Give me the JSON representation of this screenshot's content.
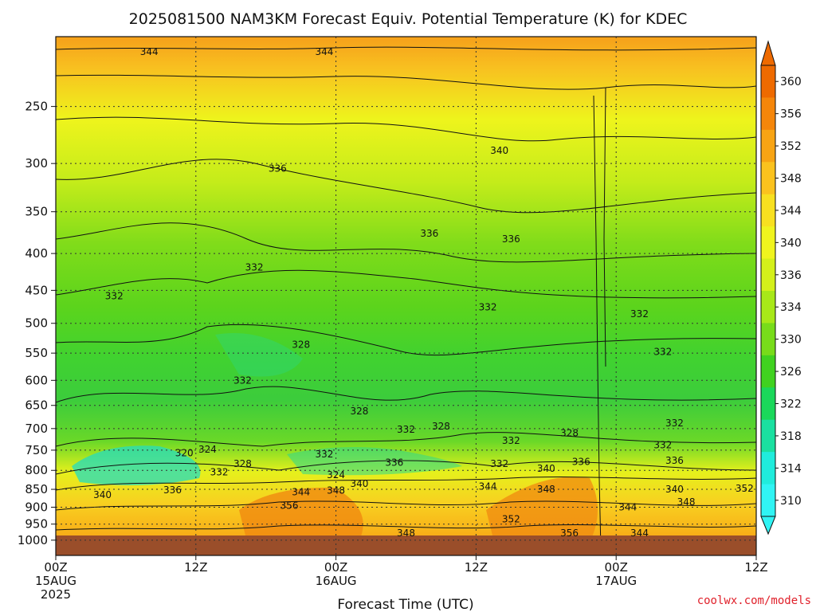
{
  "chart_data": {
    "type": "heatmap",
    "title": "2025081500 NAM3KM Forecast Equiv. Potential Temperature (K) for KDEC",
    "xlabel": "Forecast Time (UTC)",
    "ylabel": "",
    "y_scale": "log-pressure",
    "y_reversed": true,
    "ylim": [
      1050,
      200
    ],
    "y_ticks": [
      250,
      300,
      350,
      400,
      450,
      500,
      550,
      600,
      650,
      700,
      750,
      800,
      850,
      900,
      950,
      1000
    ],
    "x_ticks": [
      {
        "label": "00Z",
        "date": "15AUG",
        "year": "2025",
        "hour": 0
      },
      {
        "label": "12Z",
        "date": "",
        "year": "",
        "hour": 12
      },
      {
        "label": "00Z",
        "date": "16AUG",
        "year": "",
        "hour": 24
      },
      {
        "label": "12Z",
        "date": "",
        "year": "",
        "hour": 36
      },
      {
        "label": "00Z",
        "date": "17AUG",
        "year": "",
        "hour": 48
      },
      {
        "label": "12Z",
        "date": "",
        "year": "",
        "hour": 60
      }
    ],
    "grid": true,
    "colorbar": {
      "unit": "K",
      "labels": [
        360,
        356,
        352,
        348,
        344,
        340,
        336,
        334,
        330,
        326,
        322,
        318,
        314,
        310
      ],
      "colors": [
        "#ee6a00",
        "#f5860a",
        "#f8a414",
        "#fbc21e",
        "#f8e020",
        "#f0f41e",
        "#d4f01a",
        "#a8e818",
        "#78dc1a",
        "#40d220",
        "#1ad85a",
        "#1ae0a0",
        "#20ecdc",
        "#30f4f4"
      ]
    },
    "contour_labels": [
      {
        "text": "344",
        "hour": 8,
        "p": 210
      },
      {
        "text": "344",
        "hour": 23,
        "p": 210
      },
      {
        "text": "340",
        "hour": 38,
        "p": 288
      },
      {
        "text": "336",
        "hour": 19,
        "p": 305
      },
      {
        "text": "336",
        "hour": 32,
        "p": 375
      },
      {
        "text": "336",
        "hour": 39,
        "p": 382
      },
      {
        "text": "332",
        "hour": 17,
        "p": 418
      },
      {
        "text": "332",
        "hour": 5,
        "p": 458
      },
      {
        "text": "332",
        "hour": 37,
        "p": 475
      },
      {
        "text": "332",
        "hour": 50,
        "p": 485
      },
      {
        "text": "328",
        "hour": 21,
        "p": 535
      },
      {
        "text": "332",
        "hour": 52,
        "p": 548
      },
      {
        "text": "332",
        "hour": 16,
        "p": 600
      },
      {
        "text": "328",
        "hour": 26,
        "p": 662
      },
      {
        "text": "328",
        "hour": 33,
        "p": 695
      },
      {
        "text": "332",
        "hour": 30,
        "p": 702
      },
      {
        "text": "332",
        "hour": 53,
        "p": 688
      },
      {
        "text": "328",
        "hour": 44,
        "p": 710
      },
      {
        "text": "332",
        "hour": 39,
        "p": 728
      },
      {
        "text": "332",
        "hour": 52,
        "p": 738
      },
      {
        "text": "320",
        "hour": 11,
        "p": 757
      },
      {
        "text": "324",
        "hour": 13,
        "p": 748
      },
      {
        "text": "332",
        "hour": 23,
        "p": 760
      },
      {
        "text": "336",
        "hour": 53,
        "p": 775
      },
      {
        "text": "336",
        "hour": 29,
        "p": 780
      },
      {
        "text": "336",
        "hour": 45,
        "p": 778
      },
      {
        "text": "328",
        "hour": 16,
        "p": 783
      },
      {
        "text": "332",
        "hour": 38,
        "p": 783
      },
      {
        "text": "340",
        "hour": 42,
        "p": 795
      },
      {
        "text": "332",
        "hour": 14,
        "p": 805
      },
      {
        "text": "324",
        "hour": 24,
        "p": 812
      },
      {
        "text": "340",
        "hour": 26,
        "p": 835
      },
      {
        "text": "344",
        "hour": 37,
        "p": 842
      },
      {
        "text": "336",
        "hour": 10,
        "p": 852
      },
      {
        "text": "340",
        "hour": 4,
        "p": 865
      },
      {
        "text": "344",
        "hour": 21,
        "p": 858
      },
      {
        "text": "348",
        "hour": 24,
        "p": 853
      },
      {
        "text": "348",
        "hour": 42,
        "p": 850
      },
      {
        "text": "340",
        "hour": 53,
        "p": 850
      },
      {
        "text": "352",
        "hour": 59,
        "p": 848
      },
      {
        "text": "348",
        "hour": 54,
        "p": 885
      },
      {
        "text": "356",
        "hour": 20,
        "p": 895
      },
      {
        "text": "344",
        "hour": 49,
        "p": 900
      },
      {
        "text": "352",
        "hour": 39,
        "p": 935
      },
      {
        "text": "348",
        "hour": 30,
        "p": 978
      },
      {
        "text": "356",
        "hour": 44,
        "p": 978
      },
      {
        "text": "344",
        "hour": 50,
        "p": 978
      }
    ]
  },
  "credit": "coolwx.com/models"
}
